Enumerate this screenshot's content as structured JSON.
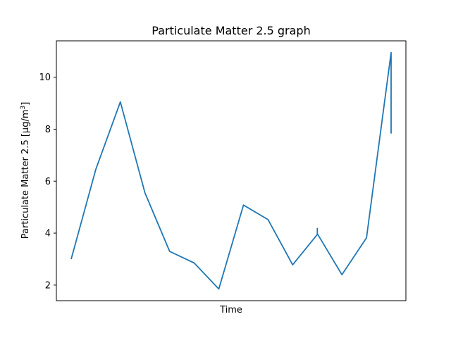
{
  "chart_data": {
    "type": "line",
    "title": "Particulate Matter 2.5 graph",
    "xlabel": "Time",
    "ylabel": "Particulate Matter 2.5 [µg/m³]",
    "ylabel_parts": {
      "main": "Particulate Matter 2.5 [µg/m",
      "sup": "3",
      "end": "]"
    },
    "ylim": [
      1.4,
      11.4
    ],
    "yticks": [
      2,
      4,
      6,
      8,
      10
    ],
    "x_ticks_shown": false,
    "grid": false,
    "series": [
      {
        "color": "#1f77b4",
        "x": [
          0,
          1,
          2,
          3,
          4,
          5,
          6,
          7,
          8,
          9,
          10,
          10,
          10,
          11,
          12,
          13,
          13,
          13,
          13,
          13
        ],
        "y": [
          3.0,
          6.45,
          9.05,
          5.55,
          3.3,
          2.85,
          1.85,
          5.08,
          4.52,
          2.78,
          3.95,
          4.18,
          3.98,
          2.4,
          3.82,
          10.95,
          7.85,
          10.95,
          7.85,
          10.95
        ]
      }
    ]
  }
}
